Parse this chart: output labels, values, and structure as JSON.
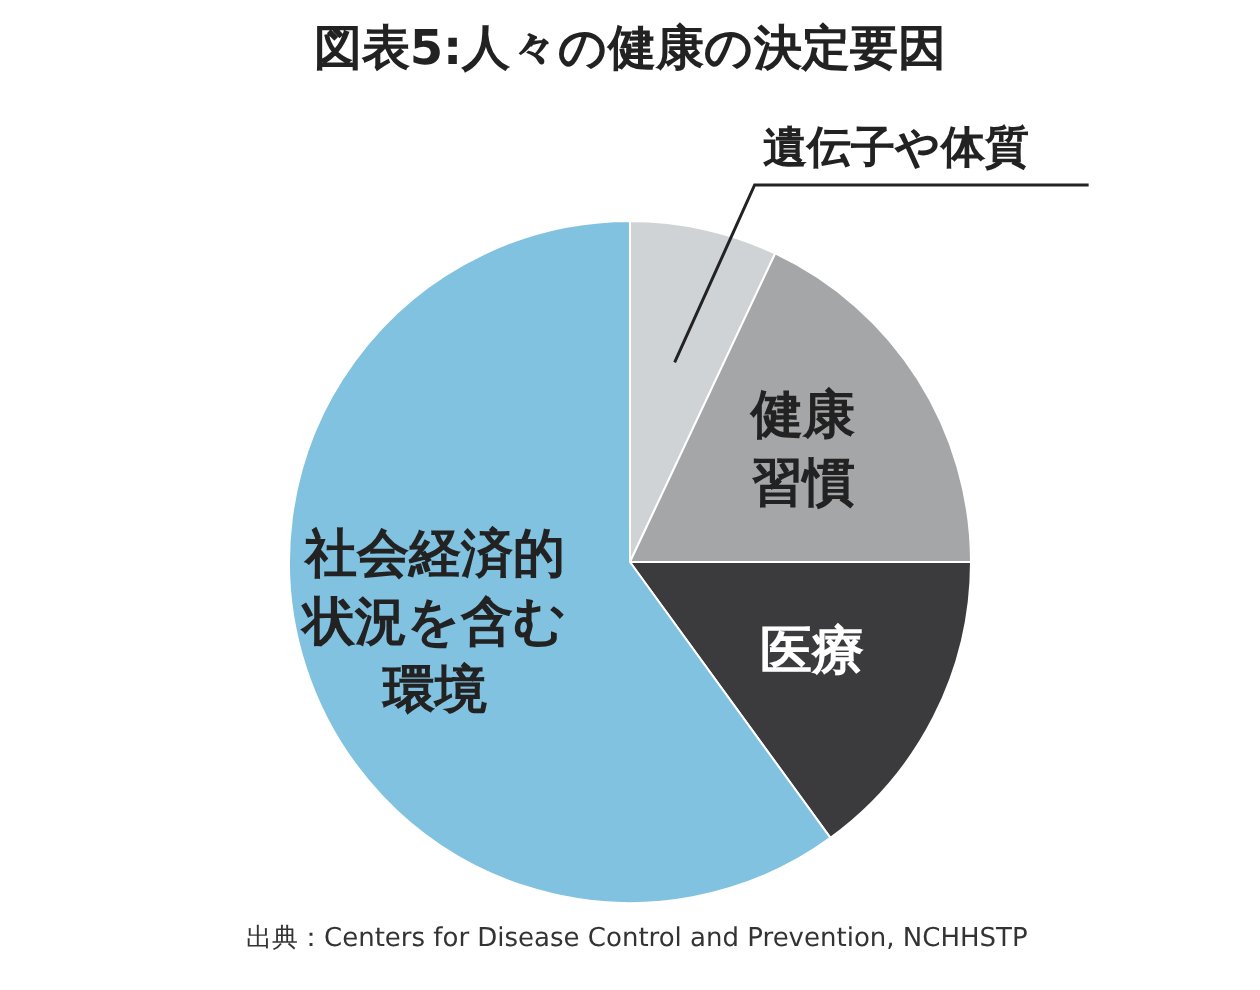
{
  "chart_data": {
    "type": "pie",
    "title": "図表5:人々の健康の決定要因",
    "categories": [
      "遺伝子や体質",
      "健康習慣",
      "医療",
      "社会経済的状況を含む環境"
    ],
    "values": [
      7,
      18,
      15,
      60
    ],
    "colors": [
      "#d0d3d6",
      "#a5a6a8",
      "#3b3a3c",
      "#80c2e0"
    ],
    "legend": false,
    "annotations": [
      "出典：Centers for Disease Control and Prevention, NCHHSTP"
    ]
  }
}
